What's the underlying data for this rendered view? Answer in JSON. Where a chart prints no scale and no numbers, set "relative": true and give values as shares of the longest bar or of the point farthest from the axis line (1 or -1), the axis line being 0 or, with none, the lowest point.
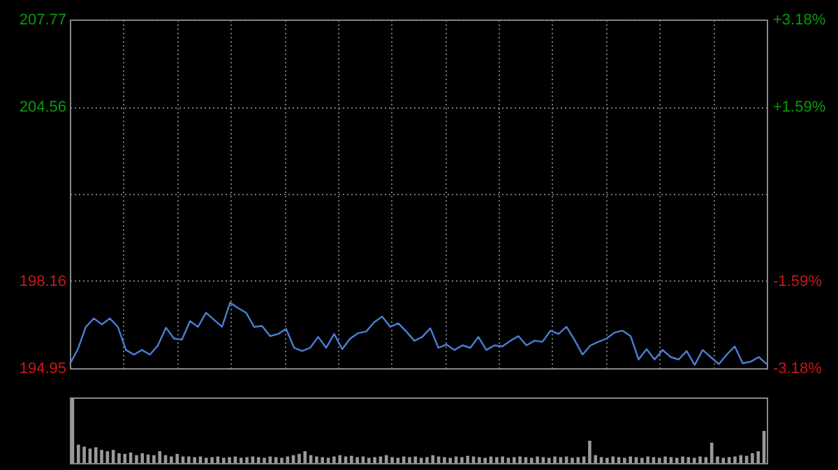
{
  "chart_data": [
    {
      "type": "line",
      "categories": [
        null,
        null,
        null,
        null,
        null,
        null,
        null,
        null,
        null,
        null,
        null,
        null,
        null,
        null,
        null,
        null,
        null,
        null,
        null,
        null,
        null,
        null,
        null,
        null,
        null,
        null,
        null,
        null,
        null,
        null,
        null,
        null,
        null,
        null,
        null,
        null,
        null,
        null,
        null,
        null,
        null,
        null,
        null,
        null,
        null,
        null,
        null,
        null,
        null,
        null,
        null,
        null,
        null,
        null,
        null,
        null,
        null,
        null,
        null,
        null,
        null,
        null,
        null,
        null,
        null,
        null,
        null,
        null,
        null,
        null,
        null,
        null,
        null,
        null,
        null,
        null,
        null,
        null,
        null,
        null,
        null,
        null,
        null,
        null,
        null,
        null,
        null,
        null
      ],
      "series": [
        {
          "color": "#4a7fd6",
          "values": [
            195.1,
            195.65,
            196.47,
            196.78,
            196.56,
            196.78,
            196.47,
            195.62,
            195.45,
            195.62,
            195.45,
            195.79,
            196.44,
            196.04,
            196.0,
            196.68,
            196.47,
            196.99,
            196.73,
            196.47,
            197.36,
            197.16,
            196.99,
            196.47,
            196.5,
            196.13,
            196.21,
            196.39,
            195.7,
            195.58,
            195.7,
            196.1,
            195.7,
            196.21,
            195.65,
            196.04,
            196.24,
            196.3,
            196.64,
            196.85,
            196.47,
            196.6,
            196.3,
            195.96,
            196.1,
            196.42,
            195.7,
            195.82,
            195.62,
            195.79,
            195.7,
            196.1,
            195.62,
            195.79,
            195.75,
            195.96,
            196.13,
            195.79,
            195.96,
            195.92,
            196.33,
            196.21,
            196.47,
            195.99,
            195.45,
            195.79,
            195.92,
            196.04,
            196.26,
            196.33,
            196.13,
            195.27,
            195.65,
            195.27,
            195.62,
            195.36,
            195.27,
            195.58,
            195.07,
            195.62,
            195.36,
            195.1,
            195.45,
            195.75,
            195.13,
            195.19,
            195.36,
            195.1
          ]
        }
      ],
      "ylim": [
        194.95,
        207.77
      ],
      "yticks": [
        194.95,
        198.16,
        {
          "value": 201.36,
          "label": null
        },
        204.56,
        207.77
      ],
      "y2lim": [
        -3.18,
        3.18
      ],
      "y2ticks": [
        {
          "value": -3.18,
          "label": "-3.18%"
        },
        {
          "value": -1.59,
          "label": "-1.59%"
        },
        {
          "value": 1.59,
          "label": "+1.59%"
        },
        {
          "value": 3.18,
          "label": "+3.18%"
        }
      ],
      "grid": true
    },
    {
      "type": "bar",
      "relative": true,
      "categories": [
        null,
        null,
        null,
        null,
        null,
        null,
        null,
        null,
        null,
        null,
        null,
        null,
        null,
        null,
        null,
        null,
        null,
        null,
        null,
        null,
        null,
        null,
        null,
        null,
        null,
        null,
        null,
        null,
        null,
        null,
        null,
        null,
        null,
        null,
        null,
        null,
        null,
        null,
        null,
        null,
        null,
        null,
        null,
        null,
        null,
        null,
        null,
        null,
        null,
        null,
        null,
        null,
        null,
        null,
        null,
        null,
        null,
        null,
        null,
        null,
        null,
        null,
        null,
        null,
        null,
        null,
        null,
        null,
        null,
        null,
        null,
        null,
        null,
        null,
        null,
        null,
        null,
        null,
        null,
        null,
        null,
        null,
        null,
        null,
        null,
        null,
        null,
        null,
        null,
        null,
        null,
        null,
        null,
        null,
        null,
        null,
        null,
        null,
        null,
        null,
        null,
        null,
        null,
        null,
        null,
        null,
        null,
        null,
        null,
        null,
        null,
        null,
        null,
        null,
        null,
        null,
        null,
        null,
        null,
        null
      ],
      "series": [
        {
          "color": "#9a9a9a",
          "values": [
            1,
            0.28,
            0.25,
            0.22,
            0.24,
            0.2,
            0.18,
            0.2,
            0.15,
            0.14,
            0.16,
            0.12,
            0.15,
            0.13,
            0.12,
            0.18,
            0.12,
            0.1,
            0.14,
            0.1,
            0.1,
            0.09,
            0.1,
            0.08,
            0.09,
            0.1,
            0.08,
            0.09,
            0.1,
            0.08,
            0.09,
            0.1,
            0.09,
            0.08,
            0.1,
            0.09,
            0.08,
            0.1,
            0.12,
            0.14,
            0.18,
            0.12,
            0.1,
            0.09,
            0.08,
            0.1,
            0.12,
            0.1,
            0.11,
            0.09,
            0.1,
            0.08,
            0.09,
            0.1,
            0.12,
            0.09,
            0.08,
            0.1,
            0.09,
            0.1,
            0.08,
            0.09,
            0.12,
            0.1,
            0.09,
            0.08,
            0.1,
            0.09,
            0.11,
            0.1,
            0.09,
            0.08,
            0.1,
            0.09,
            0.1,
            0.08,
            0.09,
            0.1,
            0.09,
            0.08,
            0.1,
            0.09,
            0.08,
            0.1,
            0.09,
            0.1,
            0.08,
            0.09,
            0.1,
            0.34,
            0.12,
            0.09,
            0.08,
            0.1,
            0.09,
            0.08,
            0.1,
            0.09,
            0.08,
            0.1,
            0.09,
            0.08,
            0.1,
            0.09,
            0.08,
            0.1,
            0.09,
            0.08,
            0.1,
            0.09,
            0.31,
            0.1,
            0.08,
            0.09,
            0.1,
            0.12,
            0.11,
            0.15,
            0.18,
            0.49
          ]
        }
      ]
    }
  ]
}
